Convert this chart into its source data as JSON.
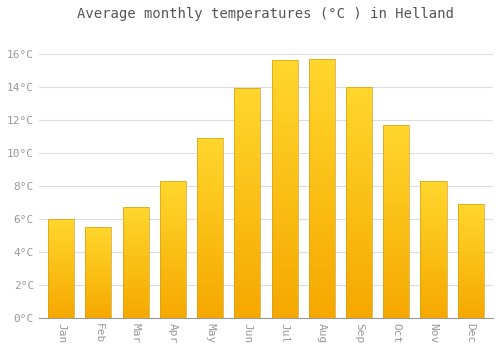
{
  "title": "Average monthly temperatures (°C ) in Helland",
  "months": [
    "Jan",
    "Feb",
    "Mar",
    "Apr",
    "May",
    "Jun",
    "Jul",
    "Aug",
    "Sep",
    "Oct",
    "Nov",
    "Dec"
  ],
  "values": [
    6.0,
    5.5,
    6.7,
    8.3,
    10.9,
    13.9,
    15.6,
    15.7,
    14.0,
    11.7,
    8.3,
    6.9
  ],
  "bar_color_bottom": "#F5A800",
  "bar_color_top": "#FFD54F",
  "bar_edge_color": "#D4A017",
  "background_color": "#FFFFFF",
  "plot_bg_color": "#FFFFFF",
  "grid_color": "#DDDDDD",
  "ytick_labels": [
    "0°C",
    "2°C",
    "4°C",
    "6°C",
    "8°C",
    "10°C",
    "12°C",
    "14°C",
    "16°C"
  ],
  "ytick_values": [
    0,
    2,
    4,
    6,
    8,
    10,
    12,
    14,
    16
  ],
  "ylim": [
    0,
    17.5
  ],
  "title_fontsize": 10,
  "tick_fontsize": 8,
  "tick_color": "#999999",
  "bar_width": 0.7,
  "figsize": [
    5.0,
    3.5
  ],
  "dpi": 100
}
